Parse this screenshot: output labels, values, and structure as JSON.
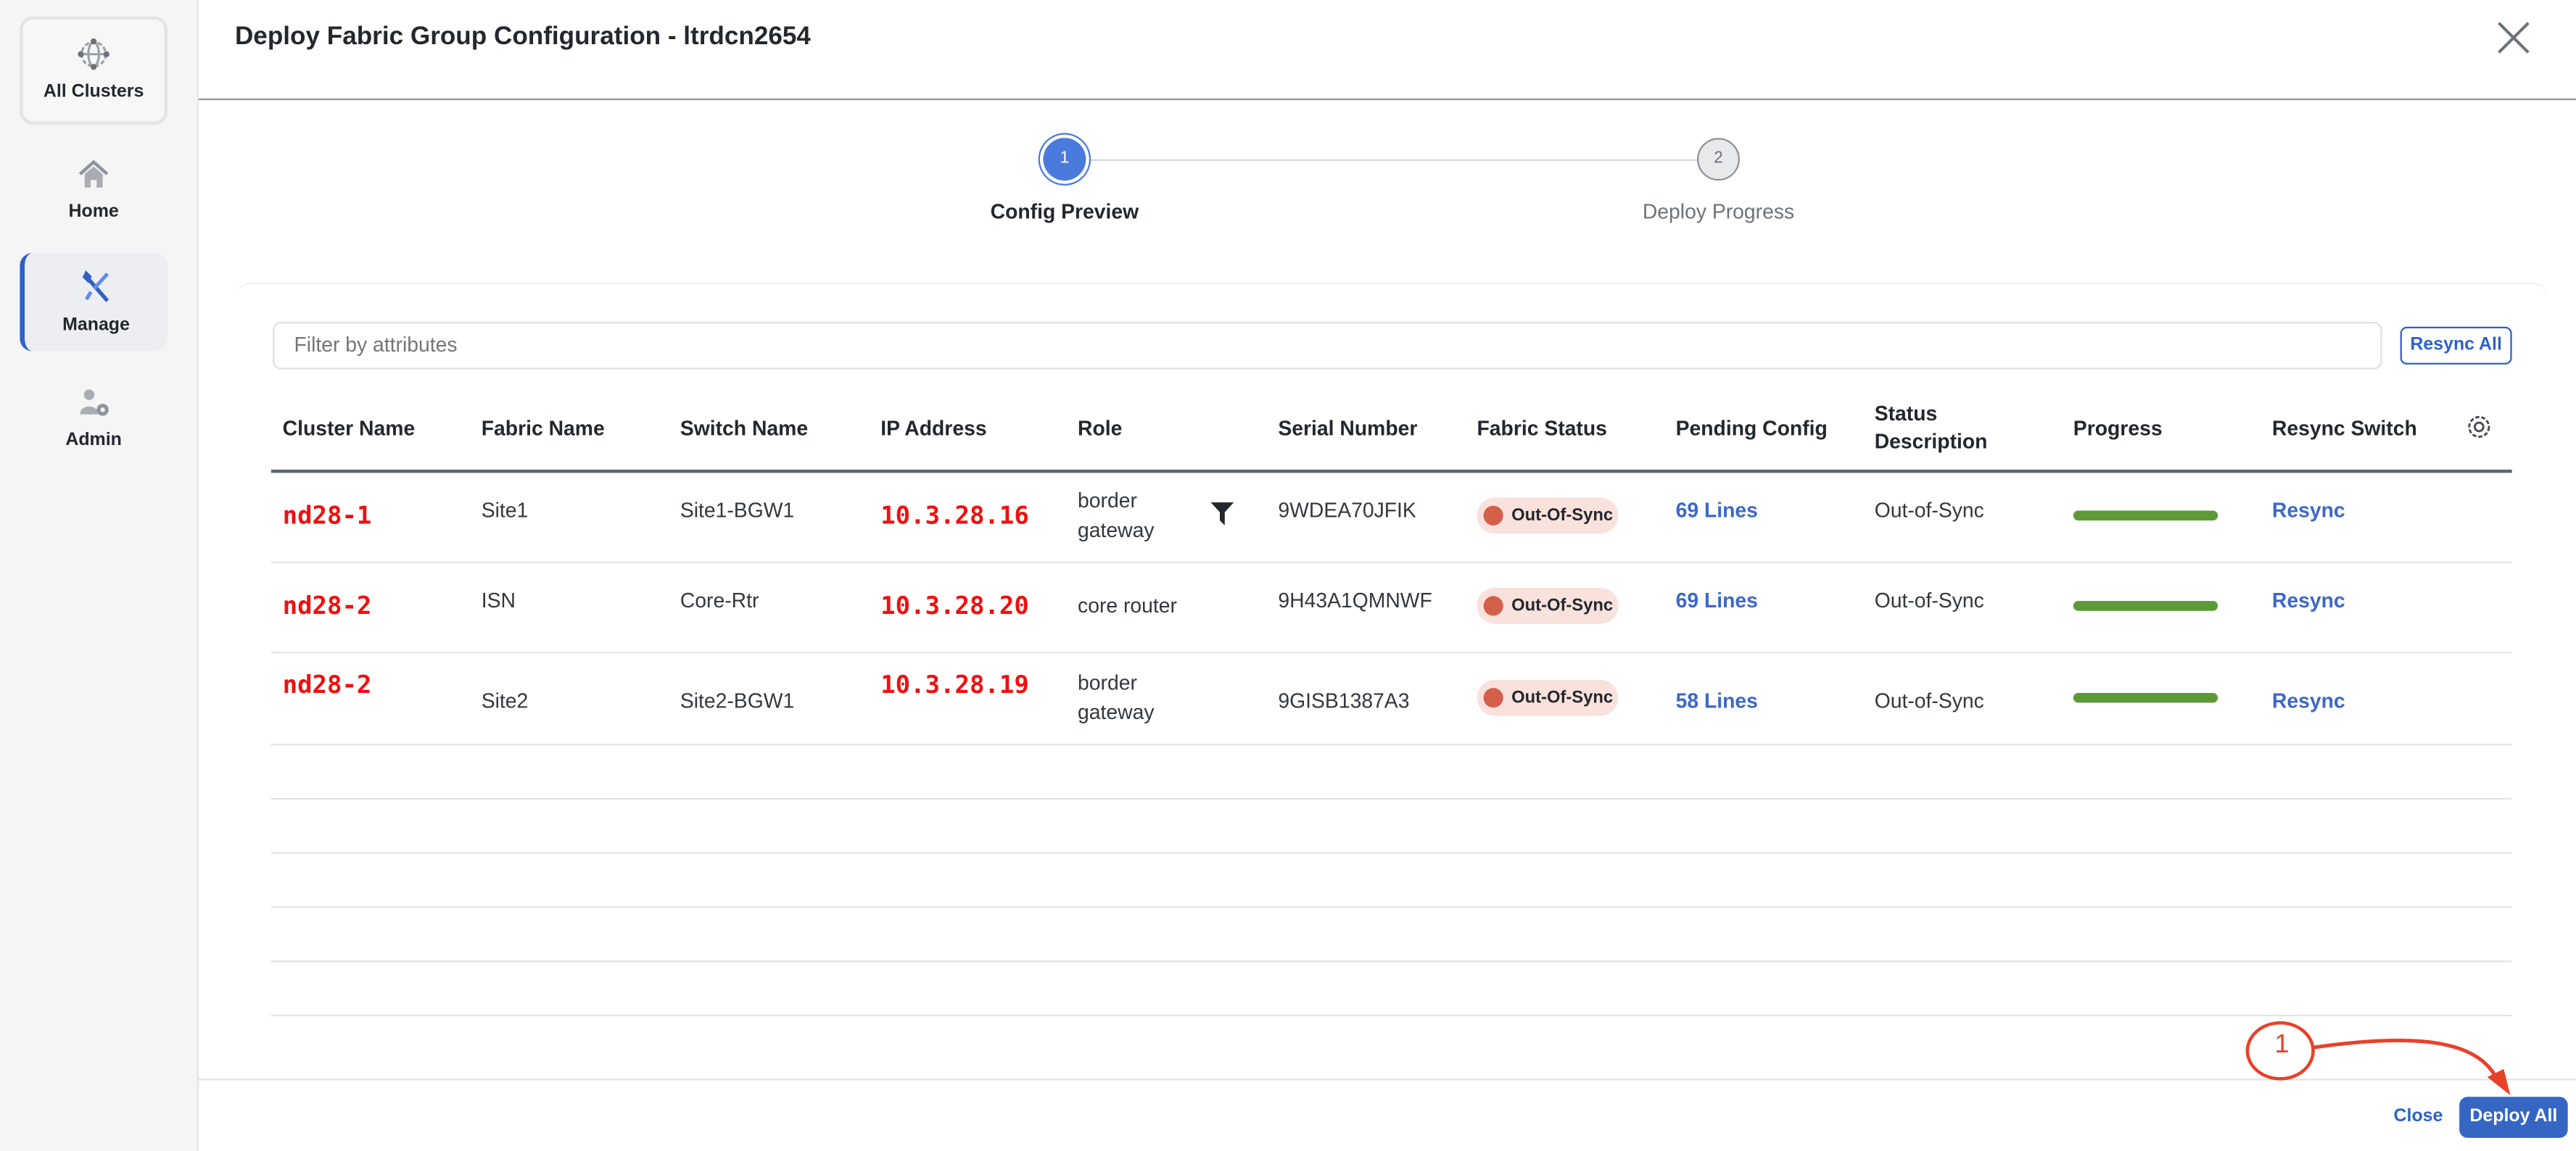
{
  "sidebar": {
    "items": [
      {
        "label": "All Clusters",
        "icon": "globe-network-icon"
      },
      {
        "label": "Home",
        "icon": "home-icon"
      },
      {
        "label": "Manage",
        "icon": "tools-icon",
        "active": true
      },
      {
        "label": "Admin",
        "icon": "user-gear-icon"
      }
    ]
  },
  "modal": {
    "title": "Deploy Fabric Group Configuration - ltrdcn2654",
    "steps": [
      {
        "number": "1",
        "label": "Config Preview",
        "active": true
      },
      {
        "number": "2",
        "label": "Deploy Progress",
        "active": false
      }
    ],
    "filter_placeholder": "Filter by attributes",
    "resync_all_label": "Resync All",
    "columns": [
      "Cluster Name",
      "Fabric Name",
      "Switch Name",
      "IP Address",
      "Role",
      "Serial Number",
      "Fabric Status",
      "Pending Config",
      "Status Description",
      "Progress",
      "Resync Switch"
    ],
    "rows": [
      {
        "cluster": "nd28-1",
        "fabric": "Site1",
        "switch": "Site1-BGW1",
        "ip": "10.3.28.16",
        "role": "border gateway",
        "serial": "9WDEA70JFIK",
        "fabric_status": "Out-Of-Sync",
        "pending": "69 Lines",
        "status_desc": "Out-of-Sync",
        "progress": 100,
        "resync": "Resync"
      },
      {
        "cluster": "nd28-2",
        "fabric": "ISN",
        "switch": "Core-Rtr",
        "ip": "10.3.28.20",
        "role": "core router",
        "serial": "9H43A1QMNWF",
        "fabric_status": "Out-Of-Sync",
        "pending": "69 Lines",
        "status_desc": "Out-of-Sync",
        "progress": 100,
        "resync": "Resync"
      },
      {
        "cluster": "nd28-2",
        "fabric": "Site2",
        "switch": "Site2-BGW1",
        "ip": "10.3.28.19",
        "role": "border gateway",
        "serial": "9GISB1387A3",
        "fabric_status": "Out-Of-Sync",
        "pending": "58 Lines",
        "status_desc": "Out-of-Sync",
        "progress": 100,
        "resync": "Resync"
      }
    ],
    "footer": {
      "close_label": "Close",
      "deploy_label": "Deploy All"
    },
    "annotation": {
      "number": "1"
    }
  },
  "colors": {
    "accent": "#2f61c6",
    "annotation": "#e8412a",
    "progress": "#5c9a38",
    "status_dot": "#d5604a",
    "highlight_text": "#f01010"
  }
}
